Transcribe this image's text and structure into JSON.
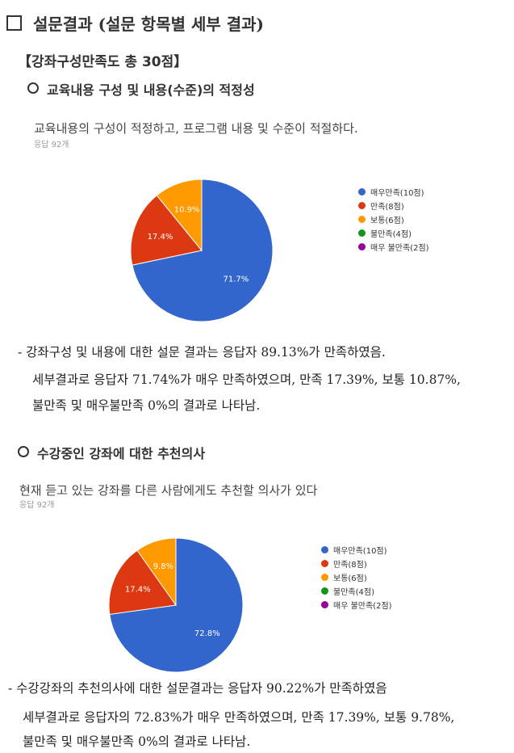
{
  "title": {
    "marker": "□",
    "text": "설문결과 (설문 항목별 세부 결과)"
  },
  "category_heading": "【강좌구성만족도 총 30점】",
  "sections": [
    {
      "heading": "교육내용 구성 및 내용(수준)의 적정성",
      "question": "교육내용의 구성이 적정하고, 프로그램 내용 및 수준이 적절하다.",
      "responses": "응답 92개",
      "chart_data": {
        "type": "pie",
        "categories": [
          "매우만족(10점)",
          "만족(8점)",
          "보통(6점)",
          "불만족(4점)",
          "매우 불만족(2점)"
        ],
        "values": [
          71.7,
          17.4,
          10.9,
          0,
          0
        ],
        "labels": [
          "71.7%",
          "17.4%",
          "10.9%",
          "",
          ""
        ],
        "colors": [
          "#3366cc",
          "#dc3912",
          "#ff9900",
          "#109618",
          "#990099"
        ],
        "legend_position": "right"
      },
      "summary": [
        "- 강좌구성 및 내용에 대한 설문 결과는 응답자 89.13%가 만족하였음.",
        "세부결과로 응답자 71.74%가 매우 만족하였으며, 만족 17.39%, 보통 10.87%,",
        "불만족 및 매우불만족 0%의 결과로 나타남."
      ]
    },
    {
      "heading": "수강중인 강좌에 대한 추천의사",
      "question": "현재 듣고 있는 강좌를 다른 사람에게도 추천할 의사가 있다",
      "responses": "응답 92개",
      "chart_data": {
        "type": "pie",
        "categories": [
          "매우만족(10점)",
          "만족(8점)",
          "보통(6점)",
          "불만족(4점)",
          "매우 불만족(2점)"
        ],
        "values": [
          72.8,
          17.4,
          9.8,
          0,
          0
        ],
        "labels": [
          "72.8%",
          "17.4%",
          "9.8%",
          "",
          ""
        ],
        "colors": [
          "#3366cc",
          "#dc3912",
          "#ff9900",
          "#109618",
          "#990099"
        ],
        "legend_position": "right"
      },
      "summary": [
        "- 수강강좌의 추천의사에 대한 설문결과는 응답자 90.22%가 만족하였음",
        "세부결과로 응답자의 72.83%가 매우 만족하였으며, 만족 17.39%, 보통 9.78%,",
        "불만족 및 매우불만족 0%의 결과로 나타남."
      ]
    }
  ]
}
